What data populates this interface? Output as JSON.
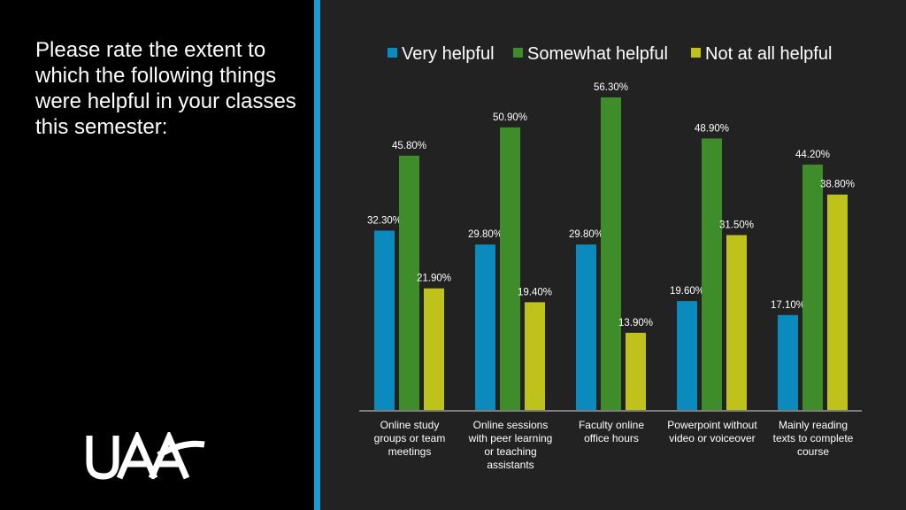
{
  "question": "Please rate the extent to which the following things were helpful in your classes this semester:",
  "logo_text": "UAA",
  "colors": {
    "accent": "#1b9ad6",
    "very": "#0b8bbd",
    "somewhat": "#3e8c2a",
    "not": "#bfc21a"
  },
  "chart_data": {
    "type": "bar",
    "categories": [
      [
        "Online study",
        "groups or team",
        "meetings"
      ],
      [
        "Online sessions",
        "with peer learning",
        "or teaching",
        "assistants"
      ],
      [
        "Faculty online",
        "office hours"
      ],
      [
        "Powerpoint without",
        "video or voiceover"
      ],
      [
        "Mainly reading",
        "texts to complete",
        "course"
      ]
    ],
    "series": [
      {
        "name": "Very helpful",
        "values": [
          32.3,
          29.8,
          29.8,
          19.6,
          17.1
        ]
      },
      {
        "name": "Somewhat helpful",
        "values": [
          45.8,
          50.9,
          56.3,
          48.9,
          44.2
        ]
      },
      {
        "name": "Not at all helpful",
        "values": [
          21.9,
          19.4,
          13.9,
          31.5,
          38.8
        ]
      }
    ],
    "value_labels": [
      [
        "32.30%",
        "29.80%",
        "29.80%",
        "19.60%",
        "17.10%"
      ],
      [
        "45.80%",
        "50.90%",
        "56.30%",
        "48.90%",
        "44.20%"
      ],
      [
        "21.90%",
        "19.40%",
        "13.90%",
        "31.50%",
        "38.80%"
      ]
    ],
    "ylim": [
      0,
      60
    ],
    "legend_position": "top",
    "grid": false
  }
}
